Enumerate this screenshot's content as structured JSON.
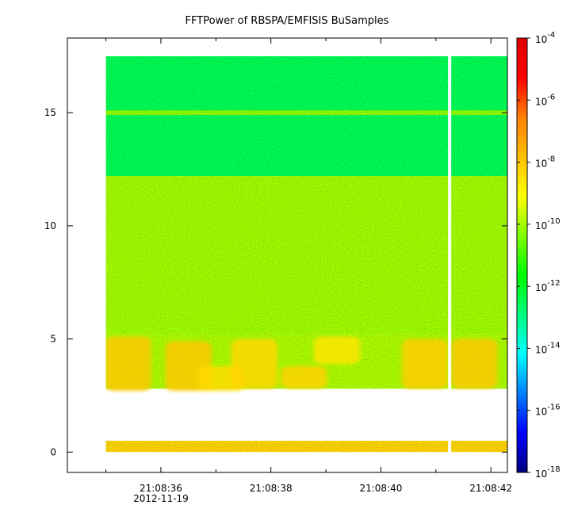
{
  "chart_data": {
    "type": "heatmap",
    "title": "FFTPower of RBSPA/EMFISIS  BuSamples",
    "xlabel": "",
    "ylabel": "",
    "x_ticks": [
      {
        "time": "21:08:36",
        "label": "21:08:36",
        "sublabel": "2012-11-19"
      },
      {
        "time": "21:08:38",
        "label": "21:08:38",
        "sublabel": ""
      },
      {
        "time": "21:08:40",
        "label": "21:08:40",
        "sublabel": ""
      },
      {
        "time": "21:08:42",
        "label": "21:08:42",
        "sublabel": ""
      }
    ],
    "x_minor_ticks": [
      "21:08:35",
      "21:08:37",
      "21:08:39",
      "21:08:41"
    ],
    "xlim": [
      "21:08:34.3",
      "21:08:42.3"
    ],
    "data_xlim": [
      "21:08:35.0",
      "21:08:42.3"
    ],
    "y_ticks": [
      0,
      5,
      10,
      15
    ],
    "ylim": [
      -0.9,
      18.3
    ],
    "data_ylim": [
      0,
      17.5
    ],
    "gap_time": "21:08:41.25",
    "colorbar": {
      "scale": "log",
      "range": [
        1e-18,
        0.0001
      ],
      "tick_exponents": [
        -4,
        -6,
        -8,
        -10,
        -12,
        -14,
        -16,
        -18
      ],
      "tick_labels": [
        "10",
        "10",
        "10",
        "10",
        "10",
        "10",
        "10",
        "10"
      ],
      "tick_superscripts": [
        "-4",
        "-6",
        "-8",
        "-10",
        "-12",
        "-14",
        "-16",
        "-18"
      ],
      "colormap": [
        "#00007f",
        "#0000ff",
        "#007fff",
        "#00ffff",
        "#00ff7f",
        "#00ff00",
        "#7fff00",
        "#ffff00",
        "#ffbf00",
        "#ff7f00",
        "#ff0000",
        "#df0000"
      ]
    },
    "bands": [
      {
        "f_low": 12.2,
        "f_high": 17.5,
        "level": -12.5
      },
      {
        "f_low": 14.9,
        "f_high": 15.1,
        "level": -10.2
      },
      {
        "f_low": 5.2,
        "f_high": 12.2,
        "level": -10.0
      },
      {
        "f_low": 2.8,
        "f_high": 5.2,
        "level": -9.9
      },
      {
        "f_low": 0,
        "f_high": 0.5,
        "level": -8.3
      }
    ],
    "bursts": [
      {
        "time": "21:08:35.4",
        "f_low": 2.7,
        "f_high": 5.1,
        "level": -8.0
      },
      {
        "time": "21:08:36.5",
        "f_low": 2.7,
        "f_high": 4.9,
        "level": -8.0
      },
      {
        "time": "21:08:37.1",
        "f_low": 2.7,
        "f_high": 3.8,
        "level": -8.4
      },
      {
        "time": "21:08:37.7",
        "f_low": 2.8,
        "f_high": 5.0,
        "level": -8.3
      },
      {
        "time": "21:08:38.6",
        "f_low": 2.8,
        "f_high": 3.8,
        "level": -8.2
      },
      {
        "time": "21:08:39.2",
        "f_low": 3.9,
        "f_high": 5.1,
        "level": -8.6
      },
      {
        "time": "21:08:40.8",
        "f_low": 2.8,
        "f_high": 5.0,
        "level": -8.1
      },
      {
        "time": "21:08:41.7",
        "f_low": 2.8,
        "f_high": 5.0,
        "level": -8.0
      }
    ]
  }
}
